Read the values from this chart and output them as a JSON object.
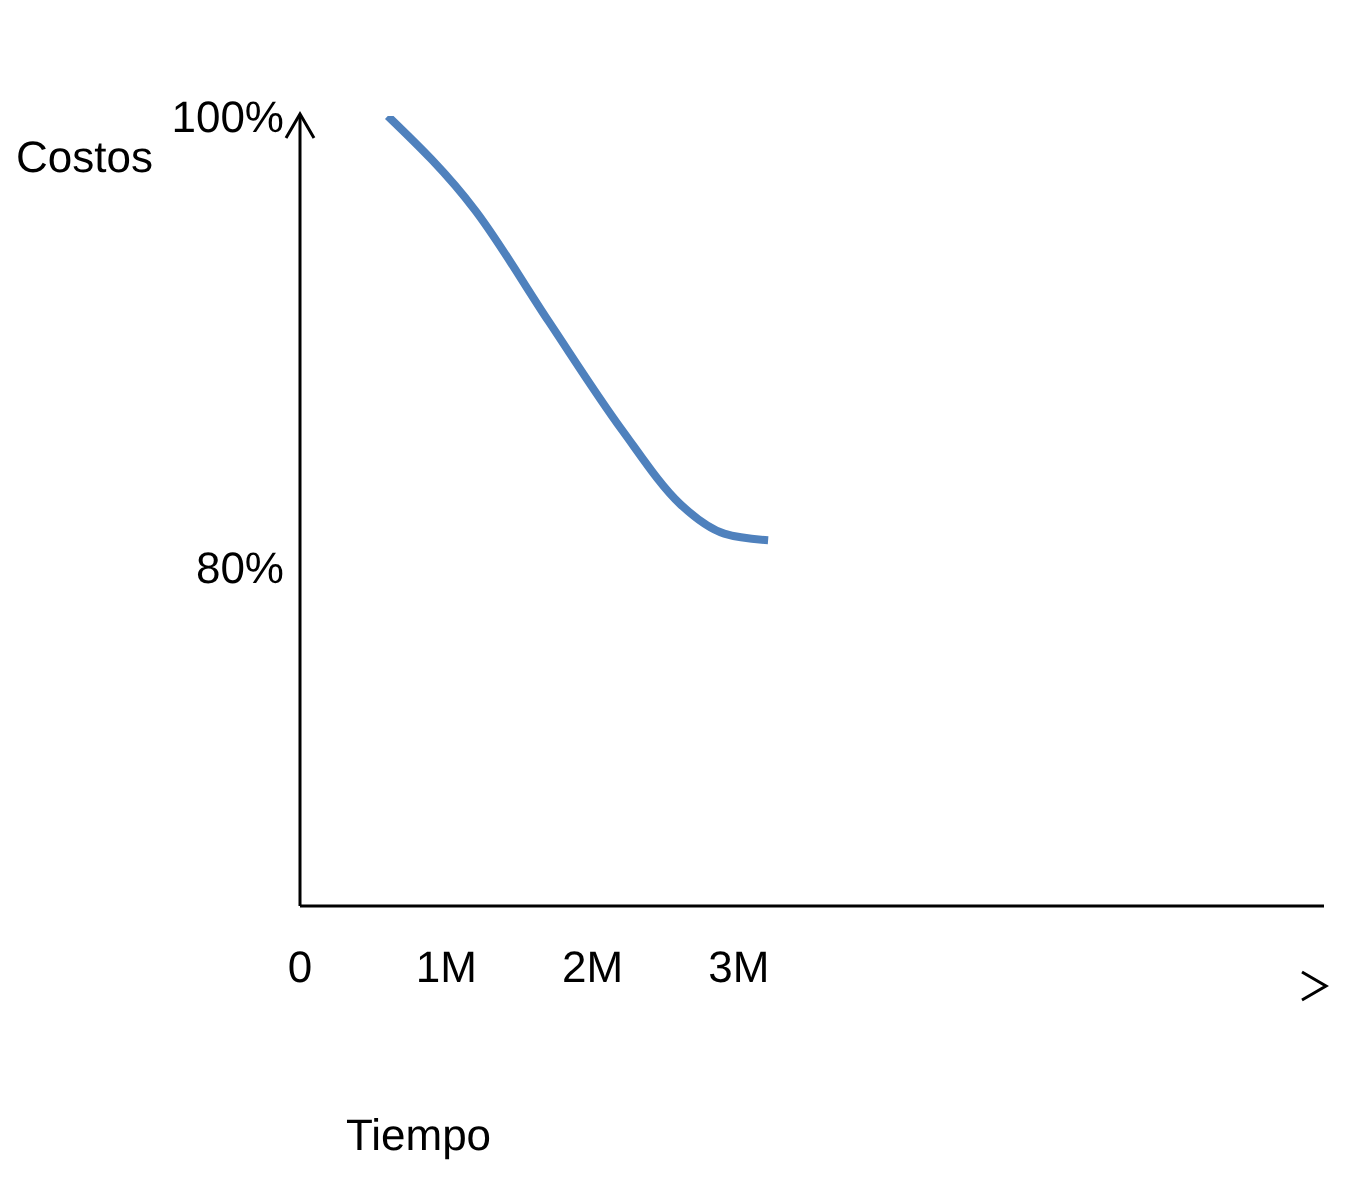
{
  "chart_data": {
    "type": "line",
    "xlabel": "Tiempo",
    "ylabel": "Costos",
    "x": [
      0.6,
      1.2,
      1.7,
      2.2,
      2.6,
      2.9,
      3.2
    ],
    "series": [
      {
        "color": "#4f81bd",
        "values": [
          100,
          95.8,
          90.9,
          86.1,
          82.8,
          81.5,
          81.2
        ]
      }
    ],
    "xlim": [
      0,
      7
    ],
    "xticks": [
      0,
      {
        "value": 1,
        "label": "1M"
      },
      {
        "value": 2,
        "label": "2M"
      },
      {
        "value": 3,
        "label": "3M"
      }
    ],
    "ylim": [
      65,
      100
    ],
    "yticks": [
      {
        "value": 80,
        "label": "80%"
      },
      {
        "value": 100,
        "label": "100%"
      }
    ],
    "grid": false,
    "legend": false,
    "marker": "none",
    "line_style": "solid"
  }
}
